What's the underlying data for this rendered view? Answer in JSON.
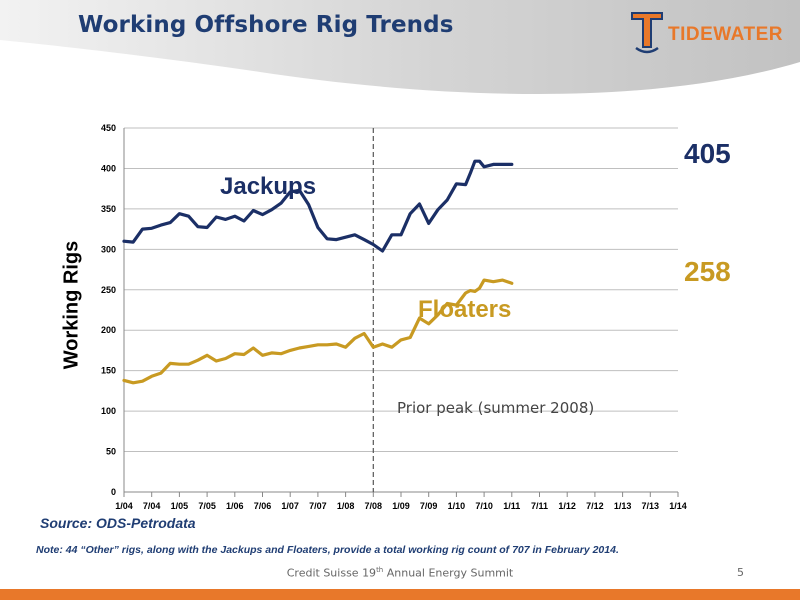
{
  "page": {
    "title": "Working Offshore Rig Trends",
    "logo_text": "TIDEWATER",
    "source": "Source: ODS-Petrodata",
    "note": "Note: 44 “Other” rigs, along with the Jackups and Floaters, provide a total working rig count of 707 in February 2014.",
    "footer_pre": "Credit Suisse 19",
    "footer_sup": "th",
    "footer_post": " Annual Energy Summit",
    "page_number": "5",
    "colors": {
      "title": "#1f3d73",
      "accent": "#e8782a",
      "jackups": "#1b2f66",
      "floaters": "#c89a22"
    }
  },
  "chart_data": {
    "type": "line",
    "title": "",
    "xlabel": "",
    "ylabel": "Working Rigs",
    "ylim": [
      0,
      450
    ],
    "yticks": [
      0,
      50,
      100,
      150,
      200,
      250,
      300,
      350,
      400,
      450
    ],
    "xticks": [
      "1/04",
      "7/04",
      "1/05",
      "7/05",
      "1/06",
      "7/06",
      "1/07",
      "7/07",
      "1/08",
      "7/08",
      "1/09",
      "7/09",
      "1/10",
      "7/10",
      "1/11",
      "7/11",
      "1/12",
      "7/12",
      "1/13",
      "7/13",
      "1/14"
    ],
    "grid": true,
    "annotation": {
      "x": "7/08",
      "text": "Prior peak (summer 2008)"
    },
    "series": [
      {
        "name": "Jackups",
        "end_label": "405",
        "color": "#1b2f66",
        "points": [
          [
            "1/04",
            310
          ],
          [
            "3/04",
            309
          ],
          [
            "5/04",
            325
          ],
          [
            "7/04",
            326
          ],
          [
            "9/04",
            330
          ],
          [
            "11/04",
            333
          ],
          [
            "1/05",
            344
          ],
          [
            "3/05",
            341
          ],
          [
            "5/05",
            328
          ],
          [
            "7/05",
            327
          ],
          [
            "9/05",
            340
          ],
          [
            "11/05",
            337
          ],
          [
            "1/06",
            341
          ],
          [
            "3/06",
            335
          ],
          [
            "5/06",
            348
          ],
          [
            "7/06",
            343
          ],
          [
            "9/06",
            349
          ],
          [
            "11/06",
            357
          ],
          [
            "1/07",
            371
          ],
          [
            "3/07",
            373
          ],
          [
            "5/07",
            355
          ],
          [
            "7/07",
            327
          ],
          [
            "9/07",
            313
          ],
          [
            "11/07",
            312
          ],
          [
            "1/08",
            315
          ],
          [
            "3/08",
            318
          ],
          [
            "5/08",
            312
          ],
          [
            "7/08",
            306
          ],
          [
            "9/08",
            298
          ],
          [
            "11/08",
            318
          ],
          [
            "1/09",
            318
          ],
          [
            "3/09",
            344
          ],
          [
            "5/09",
            356
          ],
          [
            "7/09",
            332
          ],
          [
            "9/09",
            349
          ],
          [
            "11/09",
            361
          ],
          [
            "1/10",
            381
          ],
          [
            "3/10",
            380
          ],
          [
            "4/10",
            394
          ],
          [
            "5/10",
            409
          ],
          [
            "6/10",
            409
          ],
          [
            "7/10",
            402
          ],
          [
            "9/10",
            405
          ],
          [
            "11/10",
            405
          ],
          [
            "1/11",
            405
          ]
        ]
      },
      {
        "name": "Floaters",
        "end_label": "258",
        "color": "#c89a22",
        "points": [
          [
            "1/04",
            138
          ],
          [
            "3/04",
            135
          ],
          [
            "5/04",
            137
          ],
          [
            "7/04",
            143
          ],
          [
            "9/04",
            147
          ],
          [
            "11/04",
            159
          ],
          [
            "1/05",
            158
          ],
          [
            "3/05",
            158
          ],
          [
            "5/05",
            163
          ],
          [
            "7/05",
            169
          ],
          [
            "9/05",
            162
          ],
          [
            "11/05",
            165
          ],
          [
            "1/06",
            171
          ],
          [
            "3/06",
            170
          ],
          [
            "5/06",
            178
          ],
          [
            "7/06",
            169
          ],
          [
            "9/06",
            172
          ],
          [
            "11/06",
            171
          ],
          [
            "1/07",
            175
          ],
          [
            "3/07",
            178
          ],
          [
            "5/07",
            180
          ],
          [
            "7/07",
            182
          ],
          [
            "9/07",
            182
          ],
          [
            "11/07",
            183
          ],
          [
            "1/08",
            179
          ],
          [
            "3/08",
            190
          ],
          [
            "5/08",
            196
          ],
          [
            "7/08",
            179
          ],
          [
            "9/08",
            183
          ],
          [
            "11/08",
            179
          ],
          [
            "1/09",
            188
          ],
          [
            "3/09",
            191
          ],
          [
            "5/09",
            215
          ],
          [
            "7/09",
            208
          ],
          [
            "9/09",
            219
          ],
          [
            "11/09",
            233
          ],
          [
            "1/10",
            231
          ],
          [
            "3/10",
            246
          ],
          [
            "4/10",
            249
          ],
          [
            "5/10",
            248
          ],
          [
            "6/10",
            252
          ],
          [
            "7/10",
            262
          ],
          [
            "9/10",
            260
          ],
          [
            "11/10",
            262
          ],
          [
            "1/11",
            258
          ]
        ]
      }
    ]
  }
}
